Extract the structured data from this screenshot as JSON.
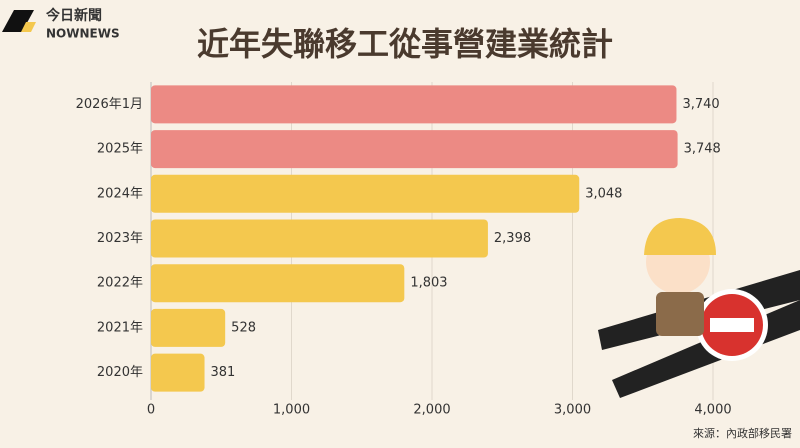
{
  "logo": {
    "name": "今日新聞",
    "brand": "NOWNEWS"
  },
  "chart_data": {
    "type": "hbar",
    "title": "近年失聯移工從事營建業統計",
    "categories": [
      "2026年1月",
      "2025年",
      "2024年",
      "2023年",
      "2022年",
      "2021年",
      "2020年"
    ],
    "values": [
      3740,
      3748,
      3048,
      2398,
      1803,
      528,
      381
    ],
    "value_labels": [
      "3,740",
      "3,748",
      "3,048",
      "2,398",
      "1,803",
      "528",
      "381"
    ],
    "colors": [
      "#ec8a84",
      "#ec8a84",
      "#f4c84e",
      "#f4c84e",
      "#f4c84e",
      "#f4c84e",
      "#f4c84e"
    ],
    "xlim": [
      0,
      4000
    ],
    "xticks": [
      0,
      {
        "value": 1000,
        "label": "1,000"
      },
      {
        "value": 2000,
        "label": "2,000"
      },
      {
        "value": 3000,
        "label": "3,000"
      },
      {
        "value": 4000,
        "label": "4,000"
      }
    ],
    "grid": true,
    "source": "來源：內政部移民署"
  }
}
